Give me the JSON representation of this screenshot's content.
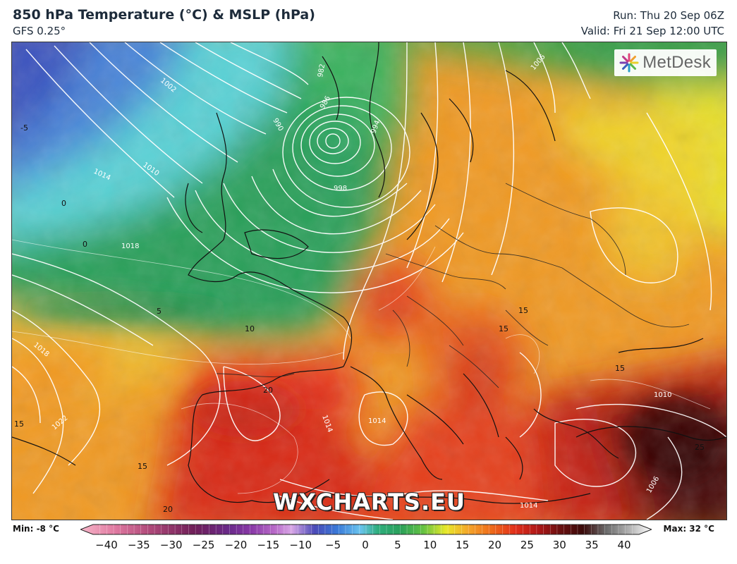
{
  "header": {
    "title": "850 hPa Temperature (°C) & MSLP (hPa)",
    "model": "GFS 0.25°",
    "run": "Run: Thu 20 Sep 06Z",
    "valid": "Valid: Fri 21 Sep 12:00 UTC"
  },
  "logo": {
    "text": "MetDesk",
    "icon": "metdesk-star-icon"
  },
  "watermark": "WXCHARTS.EU",
  "colorbar": {
    "min_label": "Min: -8 °C",
    "max_label": "Max: 32 °C",
    "ticks": [
      "−40",
      "−35",
      "−30",
      "−25",
      "−20",
      "−15",
      "−10",
      "−5",
      "0",
      "5",
      "10",
      "15",
      "20",
      "25",
      "30",
      "35",
      "40"
    ],
    "stops": [
      [
        "#f7b6c9",
        0
      ],
      [
        "#e07aa1",
        0.06
      ],
      [
        "#b04a7a",
        0.12
      ],
      [
        "#6e1e58",
        0.2
      ],
      [
        "#6a2a8a",
        0.26
      ],
      [
        "#8a3aa8",
        0.3
      ],
      [
        "#b86ac8",
        0.34
      ],
      [
        "#d8a6e6",
        0.37
      ],
      [
        "#4a4ab8",
        0.41
      ],
      [
        "#3a7ad8",
        0.45
      ],
      [
        "#6ac4ee",
        0.49
      ],
      [
        "#2fae7e",
        0.52
      ],
      [
        "#2aa05a",
        0.56
      ],
      [
        "#64c242",
        0.6
      ],
      [
        "#e8e82a",
        0.64
      ],
      [
        "#f4a42a",
        0.68
      ],
      [
        "#ee6a1a",
        0.72
      ],
      [
        "#e2301a",
        0.76
      ],
      [
        "#b01818",
        0.8
      ],
      [
        "#6a1010",
        0.84
      ],
      [
        "#3a0a0a",
        0.88
      ],
      [
        "#6a6a6a",
        0.92
      ],
      [
        "#b0b0b0",
        0.96
      ],
      [
        "#ffffff",
        1
      ]
    ]
  },
  "map": {
    "isobar_labels": [
      "1002",
      "1006",
      "1010",
      "1014",
      "1018",
      "998",
      "994",
      "990",
      "986",
      "982",
      "1022",
      "1014",
      "1018",
      "1014",
      "1010",
      "1006",
      "1014"
    ],
    "isotherm_labels": [
      "-5",
      "0",
      "0",
      "5",
      "10",
      "15",
      "15",
      "15",
      "15",
      "15",
      "20",
      "20",
      "25"
    ]
  },
  "colors": {
    "cold": "#3a56c6",
    "green": "#2aa05a",
    "yellow": "#f2e22a",
    "orange": "#f29a1e",
    "red": "#e2301a",
    "darkred": "#4a0a0a"
  }
}
